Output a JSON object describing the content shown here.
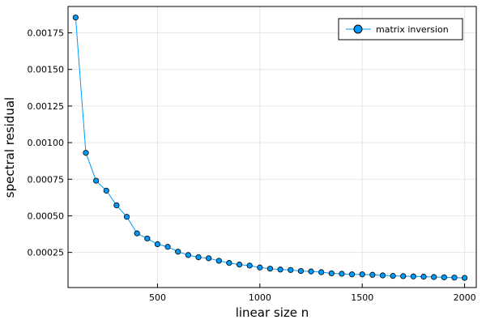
{
  "chart_data": {
    "type": "line",
    "xlabel": "linear size n",
    "ylabel": "spectral residual",
    "xlim": [
      63,
      2057
    ],
    "ylim": [
      1e-05,
      0.00193
    ],
    "xticks": [
      500,
      1000,
      1500,
      2000
    ],
    "xtick_labels": [
      "500",
      "1000",
      "1500",
      "2000"
    ],
    "yticks": [
      0.00025,
      0.0005,
      0.00075,
      0.001,
      0.00125,
      0.0015,
      0.00175
    ],
    "ytick_labels": [
      "0.00025",
      "0.00050",
      "0.00075",
      "0.00100",
      "0.00125",
      "0.00150",
      "0.00175"
    ],
    "grid": true,
    "legend_position": "top-right",
    "series": [
      {
        "name": "matrix inversion",
        "color": "#009AFA",
        "marker": "circle",
        "x": [
          100,
          150,
          200,
          250,
          300,
          350,
          400,
          450,
          500,
          550,
          600,
          650,
          700,
          750,
          800,
          850,
          900,
          950,
          1000,
          1050,
          1100,
          1150,
          1200,
          1250,
          1300,
          1350,
          1400,
          1450,
          1500,
          1550,
          1600,
          1650,
          1700,
          1750,
          1800,
          1850,
          1900,
          1950,
          2000
        ],
        "y": [
          0.001855,
          0.00093,
          0.00074,
          0.000672,
          0.000572,
          0.000493,
          0.00038,
          0.000345,
          0.000306,
          0.000288,
          0.000255,
          0.000232,
          0.000217,
          0.00021,
          0.000193,
          0.000178,
          0.000167,
          0.00016,
          0.000147,
          0.000139,
          0.000133,
          0.00013,
          0.000123,
          0.00012,
          0.000115,
          0.000107,
          0.000104,
          0.0001,
          0.0001,
          9.7e-05,
          9.3e-05,
          9e-05,
          8.8e-05,
          8.6e-05,
          8.4e-05,
          8.2e-05,
          8e-05,
          7.8e-05,
          7.6e-05
        ]
      }
    ]
  }
}
